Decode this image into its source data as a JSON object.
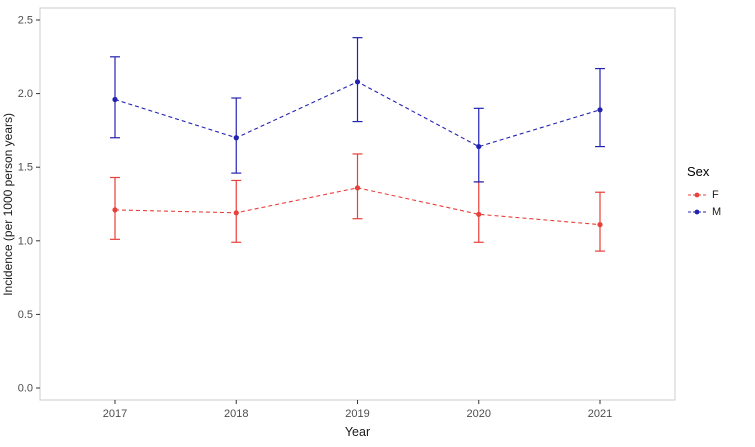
{
  "figure": {
    "background": "#ffffff",
    "panel_border_color": "#cccccc",
    "tick_label_color": "#4d4d4d",
    "axis_title_color": "#1a1a1a"
  },
  "chart_data": {
    "type": "line",
    "title": "",
    "xlabel": "Year",
    "ylabel": "Incidence (per 1000 person years)",
    "x": [
      "2017",
      "2018",
      "2019",
      "2020",
      "2021"
    ],
    "ylim": [
      0.0,
      2.5
    ],
    "yticks": [
      0.0,
      0.5,
      1.0,
      1.5,
      2.0,
      2.5
    ],
    "grid": false,
    "line_style": "dashed",
    "error_bars": true,
    "legend_title": "Sex",
    "legend_position": "right",
    "series": [
      {
        "name": "F",
        "color": "#e8403a",
        "values": [
          1.21,
          1.19,
          1.36,
          1.18,
          1.11
        ],
        "ci_low": [
          1.01,
          0.99,
          1.15,
          0.99,
          0.93
        ],
        "ci_high": [
          1.43,
          1.41,
          1.59,
          1.4,
          1.33
        ]
      },
      {
        "name": "M",
        "color": "#2323b2",
        "values": [
          1.96,
          1.7,
          2.08,
          1.64,
          1.89
        ],
        "ci_low": [
          1.7,
          1.46,
          1.81,
          1.4,
          1.64
        ],
        "ci_high": [
          2.25,
          1.97,
          2.38,
          1.9,
          2.17
        ]
      }
    ]
  }
}
